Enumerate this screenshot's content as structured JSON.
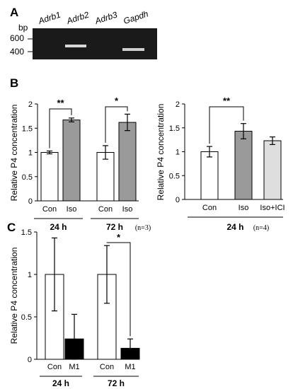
{
  "figure": {
    "panel_a_label": "A",
    "panel_b_label": "B",
    "panel_c_label": "C"
  },
  "gel": {
    "bp_label": "bp",
    "markers": [
      "600",
      "400"
    ],
    "lanes": [
      "Adrb1",
      "Adrb2",
      "Adrb3",
      "Gapdh"
    ]
  },
  "chart_data": [
    {
      "panel": "B-left",
      "type": "bar",
      "ylabel": "Relative P4 concentration",
      "ylim": [
        0,
        2
      ],
      "yticks": [
        "0",
        "0.5",
        "1",
        "1.5",
        "2"
      ],
      "groups": [
        {
          "label": "24 h",
          "bars": [
            {
              "category": "Con",
              "value": 1.0,
              "error": 0.03,
              "color": "#ffffff"
            },
            {
              "category": "Iso",
              "value": 1.67,
              "error": 0.04,
              "color": "#9a9a9a"
            }
          ],
          "significance": "**"
        },
        {
          "label": "72 h",
          "bars": [
            {
              "category": "Con",
              "value": 1.0,
              "error": 0.14,
              "color": "#ffffff"
            },
            {
              "category": "Iso",
              "value": 1.62,
              "error": 0.17,
              "color": "#9a9a9a"
            }
          ],
          "significance": "*"
        }
      ],
      "annotation": "(n=3)"
    },
    {
      "panel": "B-right",
      "type": "bar",
      "ylabel": "Relative P4 concentration",
      "ylim": [
        0,
        2
      ],
      "yticks": [
        "0",
        "0.5",
        "1",
        "1.5",
        "2"
      ],
      "groups": [
        {
          "label": "24 h",
          "bars": [
            {
              "category": "Con",
              "value": 1.0,
              "error": 0.11,
              "color": "#ffffff"
            },
            {
              "category": "Iso",
              "value": 1.43,
              "error": 0.16,
              "color": "#9a9a9a"
            },
            {
              "category": "Iso+ICI",
              "value": 1.23,
              "error": 0.08,
              "color": "#dedede"
            }
          ],
          "significance": "**"
        }
      ],
      "annotation": "(n=4)"
    },
    {
      "panel": "C",
      "type": "bar",
      "ylabel": "Relative P4 concentration",
      "ylim": [
        0,
        1.5
      ],
      "yticks": [
        "0",
        "0.5",
        "1",
        "1.5"
      ],
      "groups": [
        {
          "label": "24 h",
          "bars": [
            {
              "category": "Con",
              "value": 1.0,
              "error": 0.43,
              "color": "#ffffff"
            },
            {
              "category": "M1",
              "value": 0.24,
              "error": 0.29,
              "color": "#000000"
            }
          ],
          "significance": ""
        },
        {
          "label": "72 h",
          "bars": [
            {
              "category": "Con",
              "value": 1.0,
              "error": 0.34,
              "color": "#ffffff"
            },
            {
              "category": "M1",
              "value": 0.13,
              "error": 0.11,
              "color": "#000000"
            }
          ],
          "significance": "*"
        }
      ],
      "annotation": ""
    }
  ]
}
